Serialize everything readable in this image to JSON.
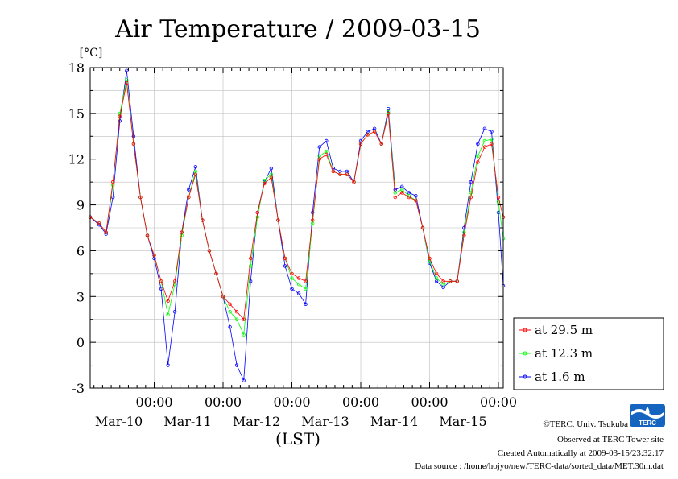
{
  "chart_data": {
    "type": "line",
    "title": "Air Temperature / 2009-03-15",
    "ylabel": "[°C]",
    "xlabel": "(LST)",
    "ylim": [
      -3,
      18
    ],
    "yticks": [
      18,
      15,
      12,
      9,
      6,
      3,
      0,
      -3
    ],
    "x_unit": "day index (0 = Mar-10 00:00 LST)",
    "xlim": [
      -0.93,
      5.07
    ],
    "xticks": [
      {
        "x": 0,
        "time": "00:00",
        "date": "Mar-10"
      },
      {
        "x": 1,
        "time": "00:00",
        "date": "Mar-11"
      },
      {
        "x": 2,
        "time": "00:00",
        "date": "Mar-12"
      },
      {
        "x": 3,
        "time": "00:00",
        "date": "Mar-13"
      },
      {
        "x": 4,
        "time": "00:00",
        "date": "Mar-14"
      },
      {
        "x": 5,
        "time": "00:00",
        "date": "Mar-15"
      }
    ],
    "grid": true,
    "legend_position": "right",
    "x": [
      -0.93,
      -0.8,
      -0.7,
      -0.6,
      -0.5,
      -0.4,
      -0.3,
      -0.2,
      -0.1,
      0.0,
      0.1,
      0.2,
      0.3,
      0.4,
      0.5,
      0.6,
      0.7,
      0.8,
      0.9,
      1.0,
      1.1,
      1.2,
      1.3,
      1.4,
      1.5,
      1.6,
      1.7,
      1.8,
      1.9,
      2.0,
      2.1,
      2.2,
      2.3,
      2.4,
      2.5,
      2.6,
      2.7,
      2.8,
      2.9,
      3.0,
      3.1,
      3.2,
      3.3,
      3.4,
      3.5,
      3.6,
      3.7,
      3.8,
      3.9,
      4.0,
      4.1,
      4.2,
      4.3,
      4.4,
      4.5,
      4.6,
      4.7,
      4.8,
      4.9,
      5.0,
      5.07
    ],
    "series": [
      {
        "name": "at 29.5 m",
        "color": "#ff0000",
        "values": [
          8.2,
          7.8,
          7.2,
          10.5,
          14.8,
          17.0,
          13.0,
          9.5,
          7.0,
          5.7,
          4.0,
          2.7,
          4.0,
          7.2,
          9.5,
          11.0,
          8.0,
          6.0,
          4.5,
          3.0,
          2.5,
          2.0,
          1.5,
          5.5,
          8.5,
          10.4,
          10.8,
          8.0,
          5.5,
          4.5,
          4.2,
          4.0,
          8.0,
          12.0,
          12.3,
          11.2,
          11.0,
          11.0,
          10.5,
          13.0,
          13.6,
          13.8,
          13.0,
          15.0,
          9.5,
          9.8,
          9.5,
          9.3,
          7.5,
          5.5,
          4.5,
          4.0,
          4.0,
          4.0,
          7.0,
          9.5,
          11.8,
          12.8,
          13.0,
          9.5,
          8.2
        ]
      },
      {
        "name": "at 12.3 m",
        "color": "#00ff00",
        "values": [
          8.2,
          7.8,
          7.2,
          10.3,
          15.0,
          17.2,
          13.0,
          9.5,
          7.0,
          5.7,
          4.0,
          1.8,
          3.8,
          7.0,
          9.5,
          11.2,
          8.0,
          6.0,
          4.5,
          3.0,
          2.0,
          1.5,
          0.5,
          5.0,
          8.2,
          10.6,
          11.0,
          8.0,
          5.5,
          4.2,
          3.8,
          3.5,
          7.8,
          12.2,
          12.5,
          11.2,
          11.0,
          11.0,
          10.5,
          13.0,
          13.6,
          13.8,
          13.0,
          15.1,
          9.8,
          10.0,
          9.6,
          9.3,
          7.5,
          5.3,
          4.2,
          3.8,
          4.0,
          4.0,
          7.2,
          9.8,
          12.2,
          13.2,
          13.3,
          9.2,
          6.8
        ]
      },
      {
        "name": "at 1.6 m",
        "color": "#0000ff",
        "values": [
          8.2,
          7.7,
          7.1,
          9.5,
          14.5,
          17.8,
          13.5,
          9.5,
          7.0,
          5.5,
          3.5,
          -1.5,
          2.0,
          7.2,
          10.0,
          11.5,
          8.0,
          6.0,
          4.5,
          3.0,
          1.0,
          -1.5,
          -2.5,
          4.0,
          8.5,
          10.5,
          11.4,
          8.0,
          5.0,
          3.5,
          3.2,
          2.5,
          8.5,
          12.8,
          13.2,
          11.4,
          11.2,
          11.2,
          10.5,
          13.2,
          13.8,
          14.0,
          13.0,
          15.3,
          10.0,
          10.2,
          9.8,
          9.6,
          7.5,
          5.2,
          4.0,
          3.6,
          4.0,
          4.0,
          7.5,
          10.5,
          13.0,
          14.0,
          13.8,
          8.5,
          3.7
        ]
      }
    ]
  },
  "credits": {
    "copyright": "©TERC, Univ. Tsukuba",
    "observed": "Observed at TERC Tower site",
    "created": "Created Automatically at 2009-03-15/23:32:17",
    "source": "Data source : /home/hojyo/new/TERC-data/sorted_data/MET.30m.dat"
  },
  "logo": {
    "text": "TERC",
    "color": "#1565c0"
  }
}
